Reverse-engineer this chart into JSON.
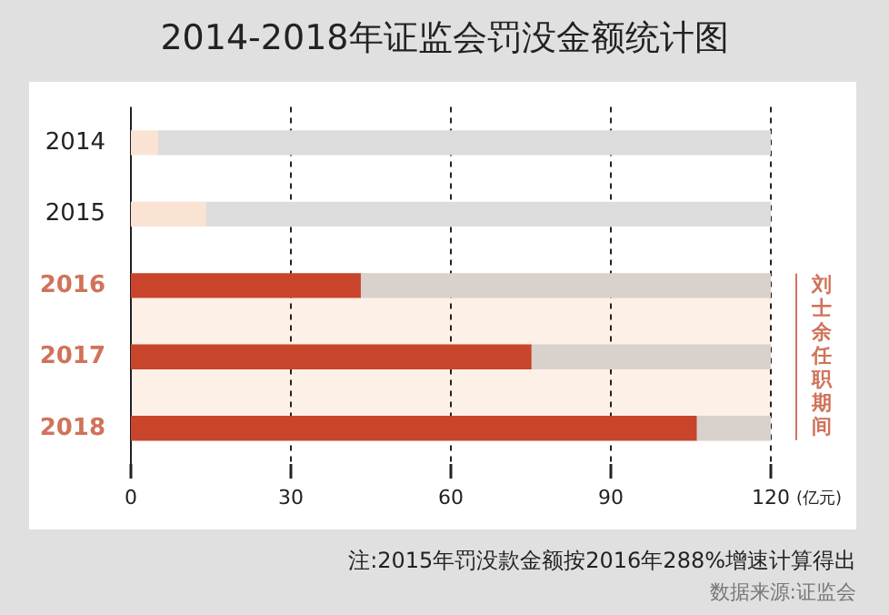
{
  "chart_data": {
    "type": "bar",
    "orientation": "horizontal",
    "title": "2014-2018年证监会罚没金额统计图",
    "xlabel": "(亿元)",
    "categories": [
      "2014",
      "2015",
      "2016",
      "2017",
      "2018"
    ],
    "series": [
      {
        "colors": [
          "#fbe3d3",
          "#fbe3d3",
          "#c8452b",
          "#c8452b",
          "#c8452b"
        ],
        "values": [
          5,
          14,
          43,
          75,
          106
        ]
      },
      {
        "colors": [
          "#dcdcdc",
          "#dcdcdc",
          "#d9d1cc",
          "#d9d1cc",
          "#d9d1cc"
        ],
        "values": [
          115,
          106,
          77,
          45,
          14
        ]
      }
    ],
    "stacked": true,
    "xlim": [
      0,
      120
    ],
    "xticks": [
      0,
      30,
      60,
      90,
      120
    ],
    "grid": "x",
    "legend": false,
    "bands": [
      {
        "axis": "y",
        "from": "2016",
        "to": "2018",
        "label": "刘士余任职期间",
        "color": "#fdf0e6"
      }
    ],
    "annotations": [
      "注:2015年罚没款金额按2016年288%增速计算得出",
      "数据来源:证监会"
    ]
  }
}
